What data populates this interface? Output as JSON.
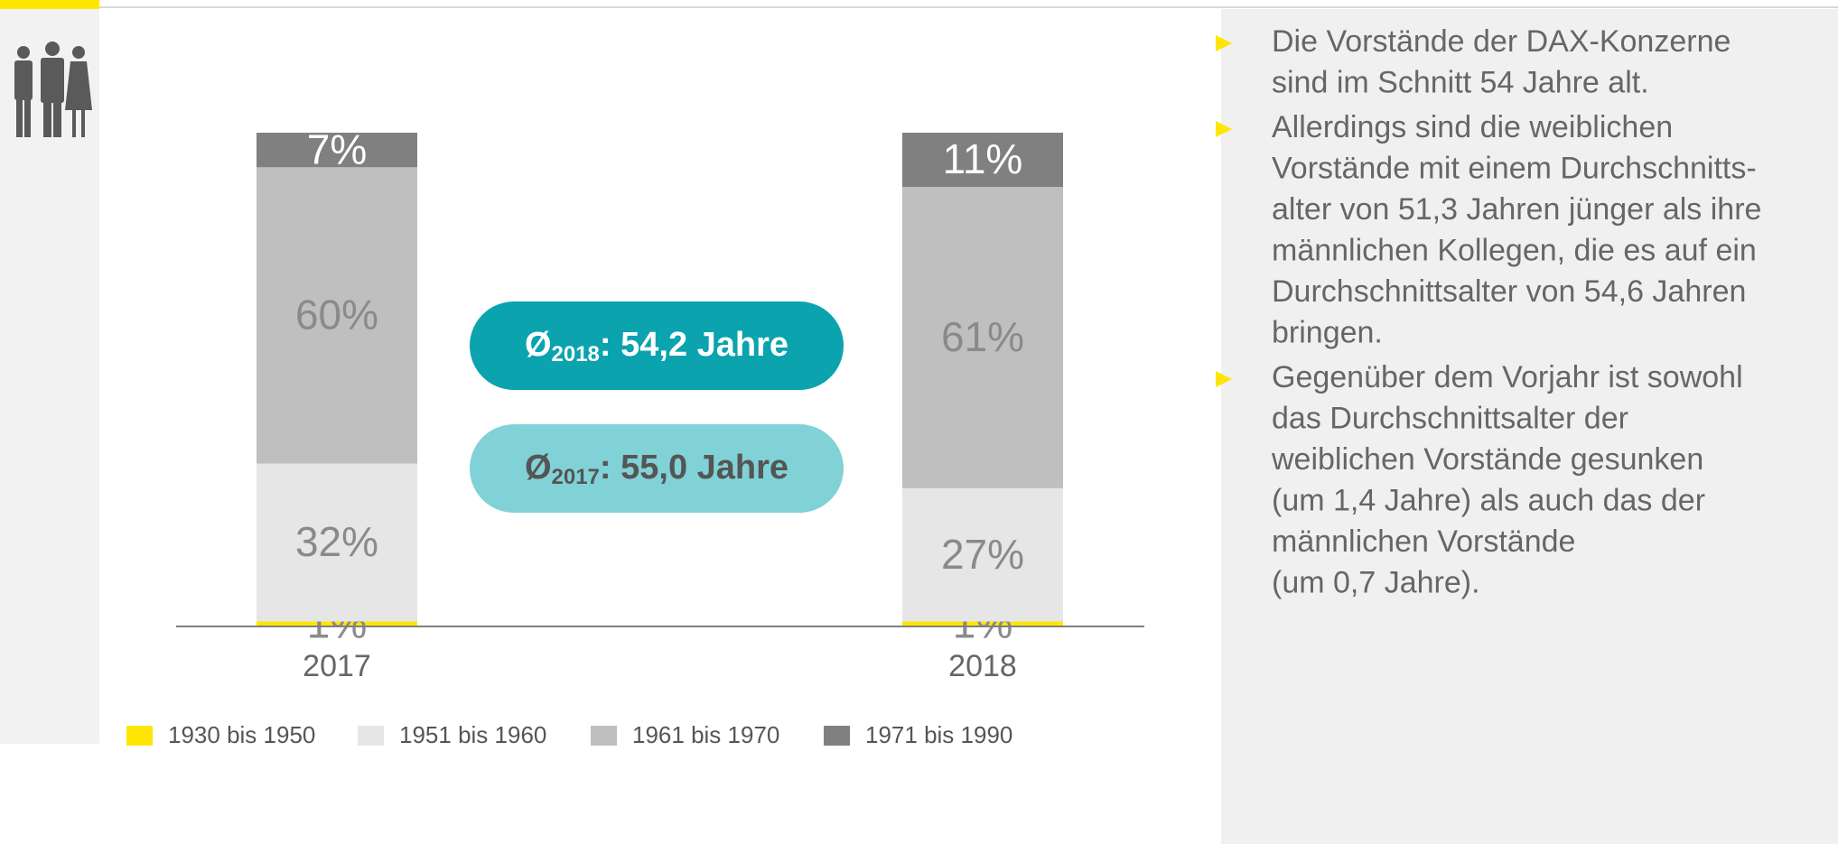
{
  "chart_data": {
    "type": "stacked-bar",
    "categories": [
      "2017",
      "2018"
    ],
    "series": [
      {
        "name": "1930 bis 1950",
        "color": "#ffe600",
        "values": [
          1,
          1
        ],
        "value_labels": [
          "1%",
          "1%"
        ]
      },
      {
        "name": "1951 bis 1960",
        "color": "#e6e6e6",
        "values": [
          32,
          27
        ],
        "value_labels": [
          "32%",
          "27%"
        ]
      },
      {
        "name": "1961 bis 1970",
        "color": "#bfbfbf",
        "values": [
          60,
          61
        ],
        "value_labels": [
          "60%",
          "61%"
        ]
      },
      {
        "name": "1971 bis 1990",
        "color": "#808080",
        "values": [
          7,
          11
        ],
        "value_labels": [
          "7%",
          "11%"
        ]
      }
    ],
    "annotations": [
      {
        "symbol": "Ø",
        "sub": "2018",
        "text": ": 54,2 Jahre",
        "color": "#0aa3ae"
      },
      {
        "symbol": "Ø",
        "sub": "2017",
        "text": ": 55,0 Jahre",
        "color": "#80d2d7"
      }
    ]
  },
  "notes": [
    [
      "Die Vorstände der DAX-Konzerne",
      "sind im Schnitt 54 Jahre alt."
    ],
    [
      "Allerdings sind die weiblichen",
      "Vorstände mit einem Durchschnitts-",
      "alter von 51,3 Jahren jünger als ihre",
      "männlichen Kollegen, die es auf ein",
      "Durchschnittsalter von 54,6 Jahren",
      "bringen."
    ],
    [
      "Gegenüber dem Vorjahr ist sowohl",
      "das Durchschnittsalter der",
      "weiblichen Vorstände gesunken",
      "(um 1,4 Jahre) als auch das der",
      "männlichen Vorstände",
      "(um 0,7 Jahre)."
    ]
  ]
}
